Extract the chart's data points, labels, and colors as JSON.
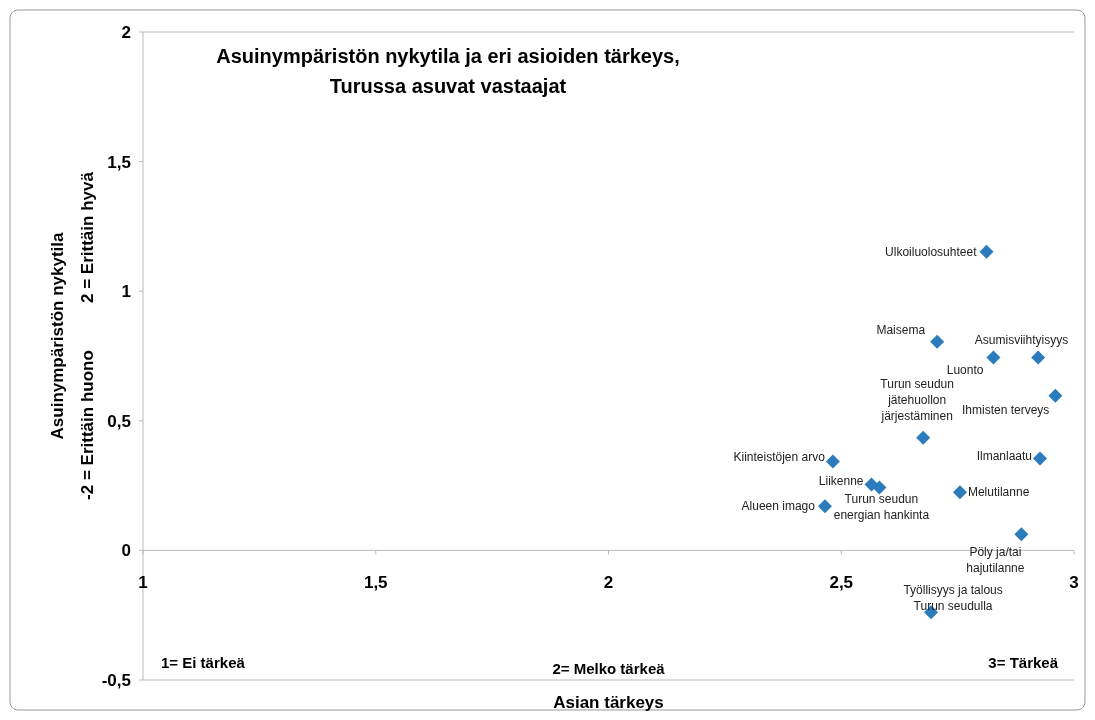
{
  "chart_data": {
    "type": "scatter",
    "title": "Asuinympäristön nykytila ja eri asioiden tärkeys,\nTurussa asuvat vastaajat",
    "xlabel": "Asian tärkeys",
    "ylabel": "Asuinympäristön nykytila\n-2 = Erittäin huono          2 = Erittäin hyvä",
    "xlim": [
      1,
      3
    ],
    "ylim": [
      -0.5,
      2
    ],
    "xticks": [
      1,
      {
        "value": 1.5,
        "label": "1,5"
      },
      2,
      {
        "value": 2.5,
        "label": "2,5"
      },
      3
    ],
    "yticks": [
      {
        "value": -0.5,
        "label": "-0,5"
      },
      0,
      {
        "value": 0.5,
        "label": "0,5"
      },
      1,
      {
        "value": 1.5,
        "label": "1,5"
      },
      2
    ],
    "marker": "diamond",
    "grid": false,
    "series": [
      {
        "color": "#2b7bbd",
        "x": [
          2.812,
          2.706,
          2.827,
          2.923,
          2.96,
          2.676,
          2.927,
          2.482,
          2.565,
          2.582,
          2.755,
          2.465,
          2.887,
          2.693
        ],
        "values": [
          1.152,
          0.805,
          0.744,
          0.744,
          0.597,
          0.435,
          0.355,
          0.343,
          0.254,
          0.243,
          0.224,
          0.17,
          0.062,
          -0.239
        ]
      }
    ],
    "annotations": [
      {
        "text": "Ulkoiluolosuhteet",
        "x": 2.812,
        "y": 1.152
      },
      {
        "text": "Maisema",
        "x": 2.706,
        "y": 0.805
      },
      {
        "text": "Luonto",
        "x": 2.827,
        "y": 0.744
      },
      {
        "text": "Asumisviihtyisyys",
        "x": 2.923,
        "y": 0.744
      },
      {
        "text": "Ihmisten terveys",
        "x": 2.96,
        "y": 0.597
      },
      {
        "text": "Turun seudun\njätehuollon\njärjestäminen",
        "x": 2.676,
        "y": 0.435
      },
      {
        "text": "Ilmanlaatu",
        "x": 2.927,
        "y": 0.355
      },
      {
        "text": "Kiinteistöjen arvo",
        "x": 2.482,
        "y": 0.343
      },
      {
        "text": "Liikenne",
        "x": 2.565,
        "y": 0.254
      },
      {
        "text": "Turun seudun\nenergian hankinta",
        "x": 2.582,
        "y": 0.243
      },
      {
        "text": "Melutilanne",
        "x": 2.755,
        "y": 0.224
      },
      {
        "text": "Alueen imago",
        "x": 2.465,
        "y": 0.17
      },
      {
        "text": "Pöly ja/tai\nhajutilanne",
        "x": 2.887,
        "y": 0.062
      },
      {
        "text": "Työllisyys ja talous\nTurun seudulla",
        "x": 2.693,
        "y": -0.239
      },
      "1= Ei tärkeä",
      "2= Melko tärkeä",
      "3= Tärkeä"
    ]
  }
}
